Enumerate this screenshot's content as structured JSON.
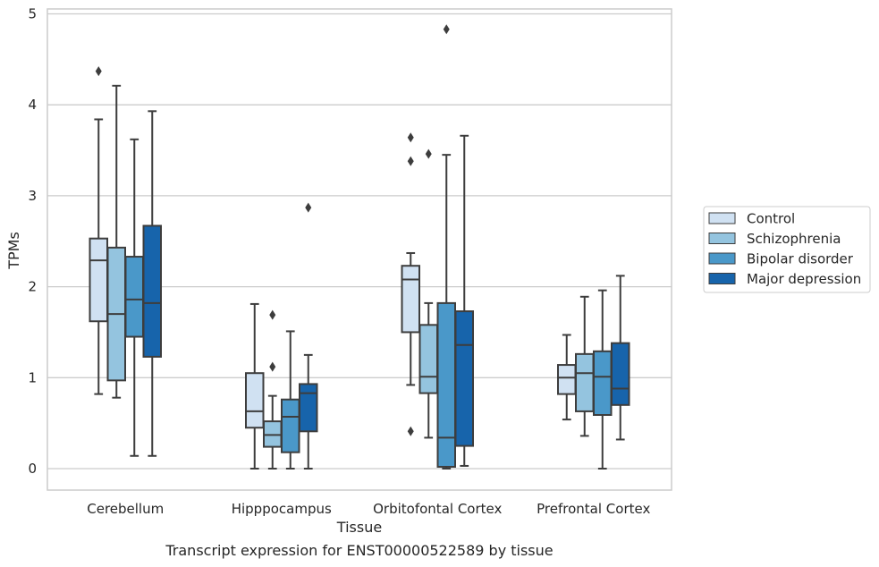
{
  "caption": "Transcript expression for ENST00000522589 by tissue",
  "chart_data": {
    "type": "box",
    "xlabel": "Tissue",
    "ylabel": "TPMs",
    "ylim": [
      -0.23,
      5.07
    ],
    "yticks": [
      0,
      1,
      2,
      3,
      4,
      5
    ],
    "grid": "horizontal",
    "legend_position": "right",
    "categories": [
      "Cerebellum",
      "Hipppocampus",
      "Orbitofontal Cortex",
      "Prefrontal Cortex"
    ],
    "colors": [
      "#d0e1f2",
      "#94c4df",
      "#4a98c9",
      "#1764ab"
    ],
    "series": [
      {
        "name": "Control",
        "boxes": [
          {
            "whislo": 0.82,
            "q1": 1.62,
            "med": 2.29,
            "q3": 2.53,
            "whishi": 3.84,
            "fliers": [
              4.37
            ]
          },
          {
            "whislo": 0.0,
            "q1": 0.45,
            "med": 0.63,
            "q3": 1.05,
            "whishi": 1.81,
            "fliers": []
          },
          {
            "whislo": 0.92,
            "q1": 1.5,
            "med": 2.08,
            "q3": 2.23,
            "whishi": 2.37,
            "fliers": [
              0.41,
              3.38,
              3.64
            ]
          },
          {
            "whislo": 0.54,
            "q1": 0.82,
            "med": 1.0,
            "q3": 1.14,
            "whishi": 1.47,
            "fliers": []
          }
        ]
      },
      {
        "name": "Schizophrenia",
        "boxes": [
          {
            "whislo": 0.78,
            "q1": 0.97,
            "med": 1.7,
            "q3": 2.43,
            "whishi": 4.21,
            "fliers": []
          },
          {
            "whislo": 0.0,
            "q1": 0.24,
            "med": 0.37,
            "q3": 0.52,
            "whishi": 0.8,
            "fliers": [
              1.12,
              1.69
            ]
          },
          {
            "whislo": 0.34,
            "q1": 0.83,
            "med": 1.01,
            "q3": 1.58,
            "whishi": 1.82,
            "fliers": [
              3.46
            ]
          },
          {
            "whislo": 0.36,
            "q1": 0.63,
            "med": 1.05,
            "q3": 1.26,
            "whishi": 1.89,
            "fliers": []
          }
        ]
      },
      {
        "name": "Bipolar disorder",
        "boxes": [
          {
            "whislo": 0.14,
            "q1": 1.45,
            "med": 1.86,
            "q3": 2.33,
            "whishi": 3.62,
            "fliers": []
          },
          {
            "whislo": 0.0,
            "q1": 0.18,
            "med": 0.57,
            "q3": 0.76,
            "whishi": 1.51,
            "fliers": []
          },
          {
            "whislo": 0.0,
            "q1": 0.02,
            "med": 0.34,
            "q3": 1.82,
            "whishi": 3.45,
            "fliers": [
              4.83
            ]
          },
          {
            "whislo": 0.0,
            "q1": 0.59,
            "med": 1.01,
            "q3": 1.29,
            "whishi": 1.96,
            "fliers": []
          }
        ]
      },
      {
        "name": "Major depression",
        "boxes": [
          {
            "whislo": 0.14,
            "q1": 1.23,
            "med": 1.82,
            "q3": 2.67,
            "whishi": 3.93,
            "fliers": []
          },
          {
            "whislo": 0.0,
            "q1": 0.41,
            "med": 0.83,
            "q3": 0.93,
            "whishi": 1.25,
            "fliers": [
              2.87
            ]
          },
          {
            "whislo": 0.03,
            "q1": 0.25,
            "med": 1.36,
            "q3": 1.73,
            "whishi": 3.66,
            "fliers": []
          },
          {
            "whislo": 0.32,
            "q1": 0.7,
            "med": 0.88,
            "q3": 1.38,
            "whishi": 2.12,
            "fliers": []
          }
        ]
      }
    ]
  }
}
